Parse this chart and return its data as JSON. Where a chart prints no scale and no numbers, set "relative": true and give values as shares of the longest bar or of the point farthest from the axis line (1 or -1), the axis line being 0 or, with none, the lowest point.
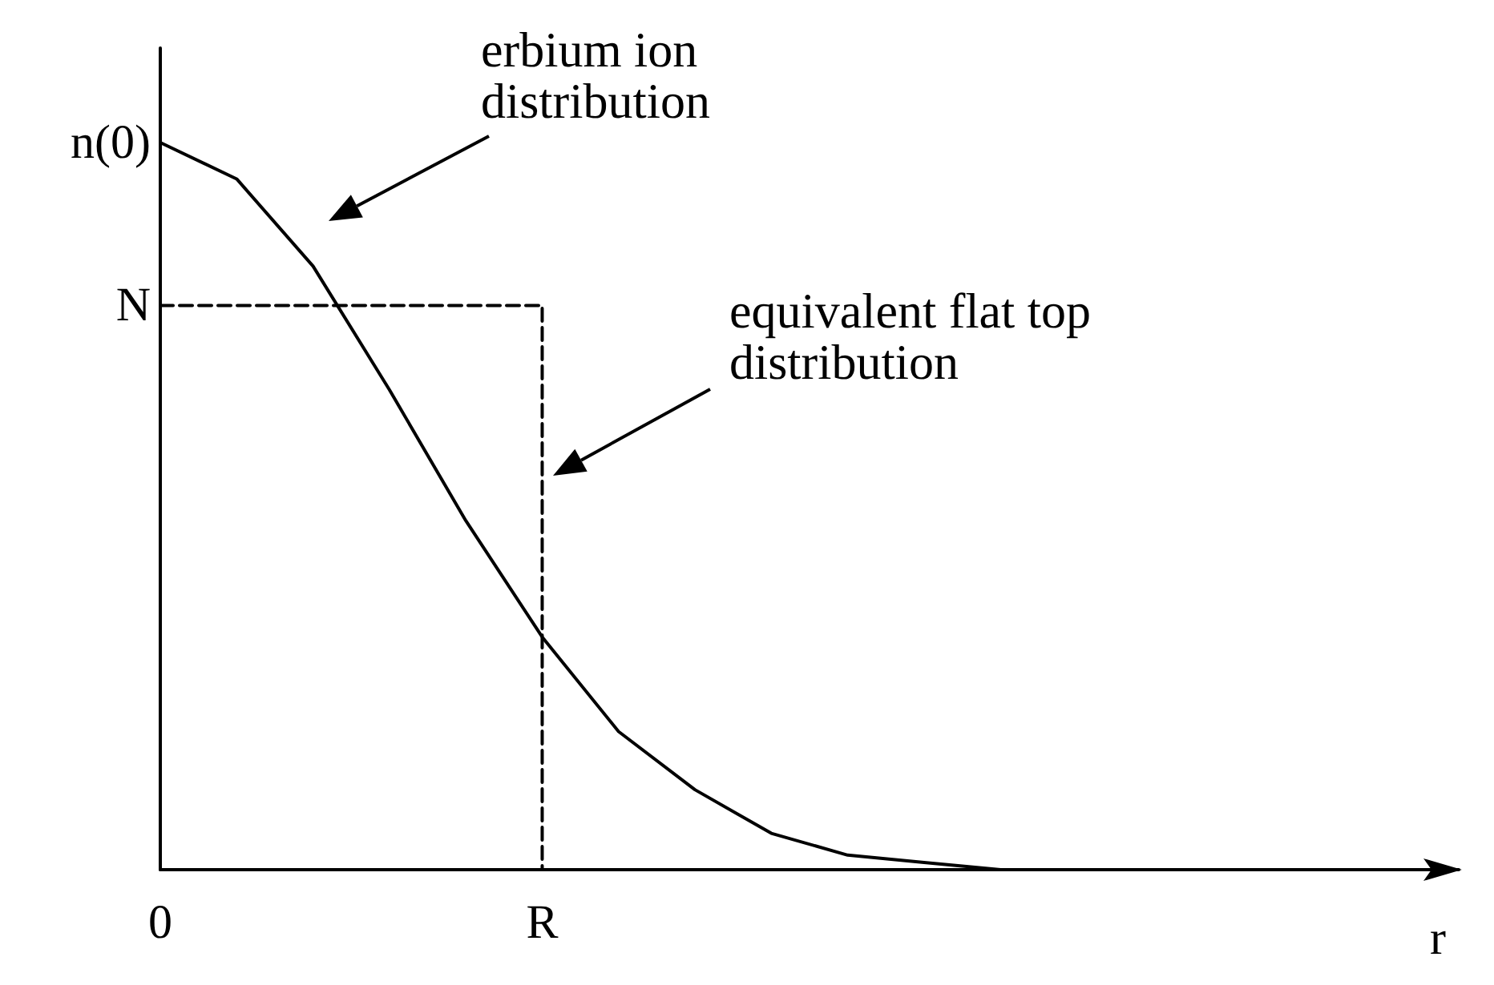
{
  "chart_data": {
    "type": "line",
    "relative": true,
    "xlabel": "r",
    "categories": [
      "0",
      null,
      null,
      null,
      null,
      "R",
      null,
      null,
      null,
      null,
      null,
      null,
      null,
      null,
      null,
      null,
      null,
      null
    ],
    "series": [
      {
        "color": "#000000",
        "line_style": "solid",
        "values": [
          1,
          0.95,
          0.83,
          0.66,
          0.48,
          0.32,
          0.19,
          0.11,
          0.05,
          0.02,
          0.01,
          0,
          0,
          0,
          0,
          null,
          null,
          null
        ]
      },
      {
        "color": "#000000",
        "line_style": "dashed",
        "x": [
          "0",
          "R",
          "R"
        ],
        "values": [
          0.776,
          0.776,
          0
        ]
      }
    ],
    "annotations": [
      "erbium ion\ndistribution",
      "equivalent flat top\ndistribution",
      {
        "text": "n(0)",
        "x": "0",
        "y": 1
      },
      {
        "text": "N",
        "x": "0",
        "y": 0.776
      }
    ],
    "marker": "none",
    "grid": false
  }
}
